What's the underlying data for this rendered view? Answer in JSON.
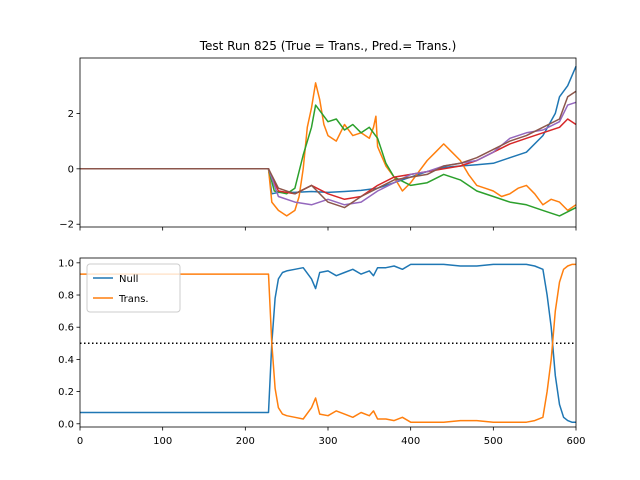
{
  "chart_data": [
    {
      "type": "line",
      "title": "Test Run 825 (True = Trans., Pred.= Trans.)",
      "xlim": [
        0,
        600
      ],
      "ylim": [
        -2.1,
        4.0
      ],
      "xticks": [
        0,
        100,
        200,
        300,
        400,
        500,
        600
      ],
      "yticks": [
        -2,
        0,
        2
      ],
      "ytick_labels": [
        "−2",
        "0",
        "2"
      ],
      "show_xtick_labels": false,
      "grid": false,
      "series": [
        {
          "color": "#1f77b4",
          "x": [
            0,
            228,
            232,
            240,
            260,
            280,
            300,
            320,
            340,
            360,
            380,
            400,
            420,
            440,
            460,
            480,
            500,
            520,
            540,
            560,
            575,
            580,
            590,
            600
          ],
          "values": [
            0,
            0,
            -0.9,
            -0.85,
            -0.85,
            -0.82,
            -0.85,
            -0.82,
            -0.78,
            -0.7,
            -0.5,
            -0.3,
            -0.1,
            0.05,
            0.1,
            0.15,
            0.2,
            0.4,
            0.6,
            1.2,
            2.0,
            2.6,
            3.0,
            3.7
          ]
        },
        {
          "color": "#ff7f0e",
          "x": [
            0,
            228,
            232,
            240,
            250,
            260,
            265,
            270,
            275,
            280,
            285,
            290,
            295,
            300,
            310,
            320,
            330,
            340,
            350,
            355,
            358,
            360,
            370,
            380,
            390,
            400,
            410,
            420,
            430,
            440,
            450,
            460,
            470,
            480,
            490,
            500,
            510,
            520,
            530,
            540,
            550,
            560,
            570,
            580,
            590,
            600
          ],
          "values": [
            0,
            0,
            -1.2,
            -1.5,
            -1.7,
            -1.5,
            -1.0,
            0.0,
            1.5,
            2.2,
            3.1,
            2.5,
            1.6,
            1.2,
            1.0,
            1.6,
            1.2,
            1.3,
            1.1,
            1.5,
            1.9,
            0.8,
            0.1,
            -0.3,
            -0.8,
            -0.5,
            -0.1,
            0.3,
            0.6,
            0.9,
            0.6,
            0.3,
            -0.2,
            -0.6,
            -0.7,
            -0.8,
            -1.0,
            -0.9,
            -0.7,
            -0.6,
            -0.9,
            -1.3,
            -1.1,
            -1.2,
            -1.5,
            -1.3
          ]
        },
        {
          "color": "#2ca02c",
          "x": [
            0,
            228,
            235,
            250,
            260,
            270,
            280,
            285,
            290,
            300,
            310,
            320,
            330,
            340,
            350,
            360,
            370,
            380,
            400,
            420,
            440,
            460,
            480,
            500,
            520,
            540,
            560,
            580,
            600
          ],
          "values": [
            0,
            0,
            -0.8,
            -0.9,
            -0.7,
            0.5,
            1.5,
            2.3,
            2.1,
            1.7,
            1.8,
            1.4,
            1.6,
            1.3,
            1.5,
            1.1,
            0.2,
            -0.3,
            -0.6,
            -0.5,
            -0.2,
            -0.4,
            -0.8,
            -1.0,
            -1.2,
            -1.3,
            -1.5,
            -1.7,
            -1.4
          ]
        },
        {
          "color": "#d62728",
          "x": [
            0,
            228,
            240,
            260,
            280,
            300,
            320,
            340,
            360,
            380,
            400,
            420,
            440,
            460,
            480,
            500,
            520,
            540,
            560,
            580,
            590,
            600
          ],
          "values": [
            0,
            0,
            -0.8,
            -0.9,
            -0.6,
            -0.9,
            -1.1,
            -1.0,
            -0.6,
            -0.3,
            -0.2,
            -0.1,
            0.0,
            0.1,
            0.3,
            0.6,
            0.9,
            1.1,
            1.3,
            1.5,
            1.8,
            1.6
          ]
        },
        {
          "color": "#9467bd",
          "x": [
            0,
            228,
            240,
            260,
            280,
            300,
            320,
            340,
            360,
            380,
            400,
            420,
            440,
            460,
            480,
            500,
            520,
            540,
            560,
            580,
            590,
            600
          ],
          "values": [
            0,
            0,
            -1.0,
            -1.2,
            -1.3,
            -1.1,
            -1.3,
            -1.2,
            -0.8,
            -0.5,
            -0.2,
            -0.1,
            0.1,
            0.2,
            0.3,
            0.6,
            1.1,
            1.3,
            1.4,
            1.7,
            2.3,
            2.4
          ]
        },
        {
          "color": "#8c564b",
          "x": [
            0,
            228,
            240,
            260,
            280,
            300,
            320,
            340,
            360,
            380,
            400,
            420,
            440,
            460,
            480,
            500,
            520,
            540,
            560,
            580,
            590,
            600
          ],
          "values": [
            0,
            0,
            -0.7,
            -0.9,
            -0.6,
            -1.2,
            -1.4,
            -1.0,
            -0.7,
            -0.4,
            -0.3,
            -0.2,
            0.1,
            0.2,
            0.4,
            0.7,
            1.0,
            1.2,
            1.5,
            1.8,
            2.6,
            2.8
          ]
        }
      ]
    },
    {
      "type": "line",
      "title": "",
      "xlim": [
        0,
        600
      ],
      "ylim": [
        -0.02,
        1.03
      ],
      "xticks": [
        0,
        100,
        200,
        300,
        400,
        500,
        600
      ],
      "yticks": [
        0.0,
        0.2,
        0.4,
        0.6,
        0.8,
        1.0
      ],
      "ytick_labels": [
        "0.0",
        "0.2",
        "0.4",
        "0.6",
        "0.8",
        "1.0"
      ],
      "grid": false,
      "legend_position": "top-left",
      "reference_line": {
        "y": 0.5,
        "style": "dotted",
        "color": "#000000"
      },
      "series": [
        {
          "name": "Null",
          "color": "#1f77b4",
          "x": [
            0,
            228,
            232,
            236,
            240,
            245,
            250,
            260,
            270,
            280,
            285,
            290,
            300,
            310,
            320,
            330,
            340,
            350,
            355,
            360,
            370,
            380,
            390,
            400,
            420,
            440,
            460,
            480,
            500,
            520,
            540,
            550,
            560,
            565,
            570,
            575,
            580,
            585,
            590,
            595,
            600
          ],
          "values": [
            0.07,
            0.07,
            0.5,
            0.78,
            0.9,
            0.94,
            0.95,
            0.96,
            0.97,
            0.9,
            0.84,
            0.94,
            0.95,
            0.92,
            0.94,
            0.96,
            0.93,
            0.95,
            0.92,
            0.97,
            0.97,
            0.98,
            0.96,
            0.99,
            0.99,
            0.99,
            0.98,
            0.98,
            0.99,
            0.99,
            0.99,
            0.98,
            0.96,
            0.8,
            0.6,
            0.3,
            0.12,
            0.04,
            0.02,
            0.01,
            0.01
          ]
        },
        {
          "name": "Trans.",
          "color": "#ff7f0e",
          "x": [
            0,
            228,
            232,
            236,
            240,
            245,
            250,
            260,
            270,
            280,
            285,
            290,
            300,
            310,
            320,
            330,
            340,
            350,
            355,
            360,
            370,
            380,
            390,
            400,
            420,
            440,
            460,
            480,
            500,
            520,
            540,
            550,
            560,
            565,
            570,
            575,
            580,
            585,
            590,
            595,
            600
          ],
          "values": [
            0.93,
            0.93,
            0.5,
            0.22,
            0.1,
            0.06,
            0.05,
            0.04,
            0.03,
            0.1,
            0.16,
            0.06,
            0.05,
            0.08,
            0.06,
            0.04,
            0.07,
            0.05,
            0.08,
            0.03,
            0.03,
            0.02,
            0.04,
            0.01,
            0.01,
            0.01,
            0.02,
            0.02,
            0.01,
            0.01,
            0.01,
            0.02,
            0.04,
            0.2,
            0.4,
            0.7,
            0.88,
            0.96,
            0.98,
            0.99,
            0.99
          ]
        }
      ]
    }
  ]
}
